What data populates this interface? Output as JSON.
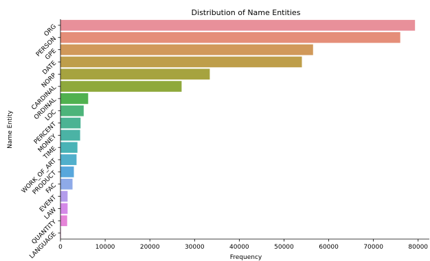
{
  "chart_data": {
    "type": "bar",
    "orientation": "horizontal",
    "title": "Distribution of Name Entities",
    "xlabel": "Frequency",
    "ylabel": "Name Entity",
    "xlim": [
      0,
      82500
    ],
    "xticks": [
      0,
      10000,
      20000,
      30000,
      40000,
      50000,
      60000,
      70000,
      80000
    ],
    "grid": false,
    "categories": [
      "ORG",
      "PERSON",
      "GPE",
      "DATE",
      "NORP",
      "CARDINAL",
      "ORDINAL",
      "LOC",
      "PERCENT",
      "MONEY",
      "TIME",
      "WORK_OF_ART",
      "PRODUCT",
      "FAC",
      "EVENT",
      "LAW",
      "QUANTITY",
      "LANGUAGE"
    ],
    "values": [
      79300,
      76000,
      56500,
      54000,
      33400,
      27100,
      6200,
      5200,
      4500,
      4400,
      3800,
      3600,
      3000,
      2700,
      1600,
      1600,
      1500,
      100
    ],
    "colors": [
      "#e8909a",
      "#e58e79",
      "#d1995a",
      "#be9e4a",
      "#a6a33f",
      "#8fa93c",
      "#50b14f",
      "#4db47a",
      "#4bb393",
      "#4bb3a5",
      "#4ab3b6",
      "#51afcb",
      "#58a7dc",
      "#8eaae8",
      "#b49ceb",
      "#d48ae8",
      "#e584d8",
      "#ea7fc4"
    ]
  }
}
